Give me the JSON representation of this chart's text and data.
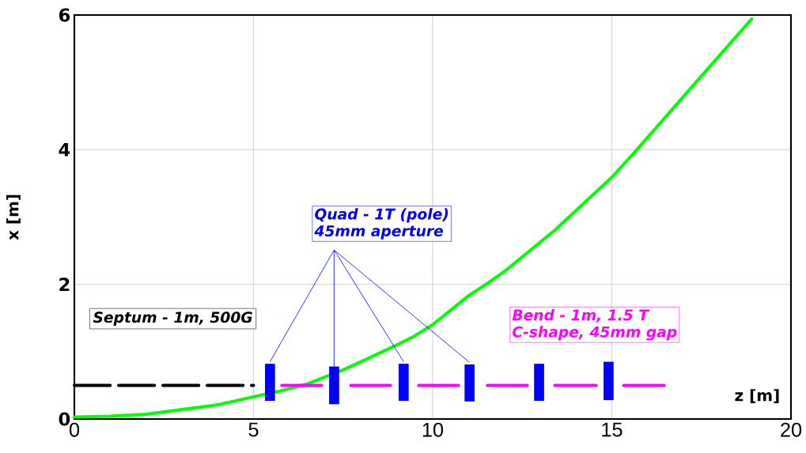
{
  "chart_data": {
    "type": "line",
    "xlabel": "z [m]",
    "ylabel": "x [m]",
    "xlim": [
      0,
      20
    ],
    "ylim": [
      0,
      6
    ],
    "xticks": [
      0,
      5,
      10,
      15,
      20
    ],
    "yticks": [
      0,
      2,
      4,
      6
    ],
    "grid": true,
    "annotations": [
      "Septum - 1m, 500G",
      "Quad - 1T (pole)",
      {
        "text": "45mm aperture",
        "x": 7.25,
        "y": 0.78
      },
      "Bend - 1m, 1.5 T",
      "C-shape, 45mm gap"
    ],
    "series": [
      {
        "color": "#00ff00",
        "x": [
          0,
          1,
          2,
          3,
          4,
          5,
          5.7,
          6.5,
          7.5,
          8.2,
          9,
          9.45,
          10,
          11,
          11.6,
          12,
          13.4,
          15,
          15.7,
          17.1,
          18.9
        ],
        "values": [
          0.03,
          0.04,
          0.07,
          0.14,
          0.21,
          0.33,
          0.41,
          0.52,
          0.73,
          0.9,
          1.1,
          1.22,
          1.4,
          1.83,
          2.04,
          2.19,
          2.8,
          3.59,
          4.0,
          4.85,
          5.94
        ]
      },
      {
        "color": "#000000",
        "line_style": "dashed",
        "x": [
          0,
          5
        ],
        "values": [
          0.5,
          0.5
        ]
      },
      {
        "color": "#ff00ff",
        "x": [
          5.79,
          6.9,
          null,
          7.72,
          8.82,
          null,
          9.61,
          10.72,
          null,
          11.53,
          12.64,
          null,
          13.41,
          14.56,
          null,
          15.33,
          16.46
        ],
        "values": [
          0.5,
          0.5,
          null,
          0.5,
          0.5,
          null,
          0.5,
          0.5,
          null,
          0.5,
          0.5,
          null,
          0.5,
          0.5,
          null,
          0.5,
          0.5
        ]
      },
      {
        "type": "bar",
        "color": "#0000ff",
        "x": [
          5.46,
          7.25,
          9.19,
          11.03,
          12.97,
          14.91
        ],
        "base": [
          0.27,
          0.22,
          0.27,
          0.26,
          0.27,
          0.28
        ],
        "values": [
          0.55,
          0.56,
          0.55,
          0.55,
          0.55,
          0.57
        ]
      }
    ]
  }
}
